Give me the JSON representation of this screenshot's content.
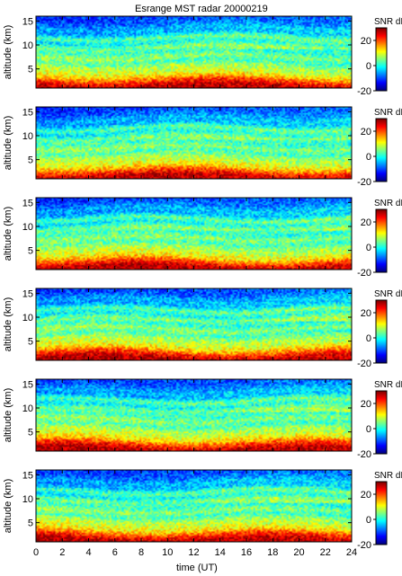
{
  "chart_data": {
    "type": "heatmap",
    "title": "Esrange MST radar 20000219",
    "xlabel": "time (UT)",
    "xlim": [
      0,
      24
    ],
    "x_ticks": [
      0,
      2,
      4,
      6,
      8,
      10,
      12,
      14,
      16,
      18,
      20,
      22,
      24
    ],
    "colorscale": {
      "label": "SNR dB",
      "range": [
        -20,
        30
      ],
      "ticks": [
        -20,
        0,
        20
      ],
      "colormap": "jet"
    },
    "panels": [
      {
        "ylabel": "altitude (km)",
        "ylim": [
          1,
          16
        ],
        "y_ticks": [
          5,
          10,
          15
        ]
      },
      {
        "ylabel": "altitude (km)",
        "ylim": [
          1,
          16
        ],
        "y_ticks": [
          5,
          10,
          15
        ]
      },
      {
        "ylabel": "altitude (km)",
        "ylim": [
          1,
          16
        ],
        "y_ticks": [
          5,
          10,
          15
        ]
      },
      {
        "ylabel": "altitude (km)",
        "ylim": [
          1,
          16
        ],
        "y_ticks": [
          5,
          10,
          15
        ]
      },
      {
        "ylabel": "altitude (km)",
        "ylim": [
          1,
          16
        ],
        "y_ticks": [
          5,
          10,
          15
        ]
      },
      {
        "ylabel": "altitude (km)",
        "ylim": [
          1,
          16
        ],
        "y_ticks": [
          5,
          10,
          15
        ]
      }
    ],
    "snr_profile_db": {
      "altitudes_km": [
        1.5,
        2.5,
        3.5,
        4.5,
        5.5,
        6.5,
        7.5,
        8.5,
        9.5,
        10.5,
        11.5,
        12.5,
        13.5,
        14.5,
        15.5
      ],
      "values": [
        28,
        22,
        14,
        10,
        8,
        3,
        7,
        2,
        4,
        -3,
        2,
        -7,
        -6,
        -10,
        -12
      ]
    }
  }
}
